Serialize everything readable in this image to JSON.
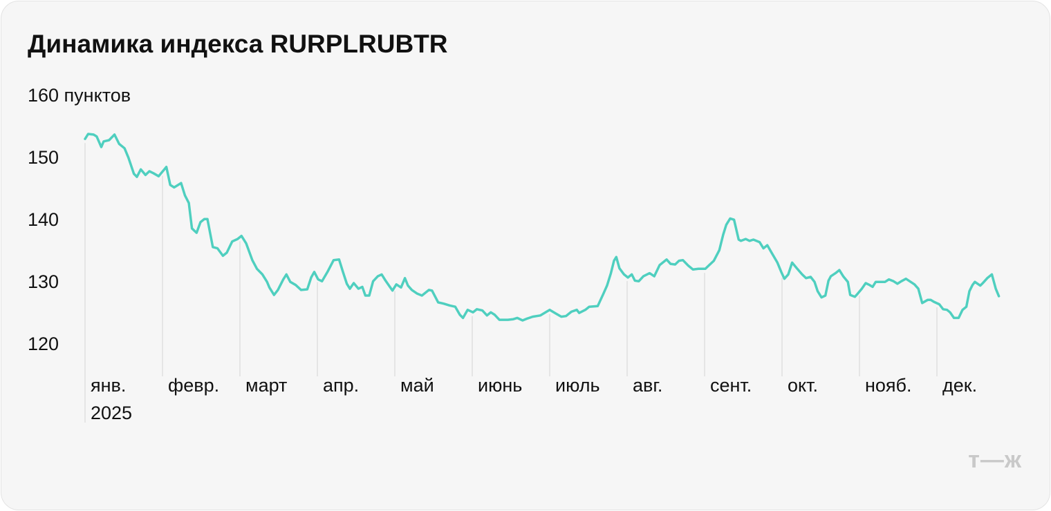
{
  "chart_data": {
    "type": "line",
    "title": "Динамика индекса RURPLRUBTR",
    "year": "2025",
    "logo": "т—ж",
    "color": "#4fcfbf",
    "xlim": [
      0,
      12
    ],
    "xticks": [
      {
        "value": 0,
        "label": "янв."
      },
      {
        "value": 1,
        "label": "февр."
      },
      {
        "value": 2,
        "label": "март"
      },
      {
        "value": 3,
        "label": "апр."
      },
      {
        "value": 4,
        "label": "май"
      },
      {
        "value": 5,
        "label": "июнь"
      },
      {
        "value": 6,
        "label": "июль"
      },
      {
        "value": 7,
        "label": "авг."
      },
      {
        "value": 8,
        "label": "сент."
      },
      {
        "value": 9,
        "label": "окт."
      },
      {
        "value": 10,
        "label": "нояб."
      },
      {
        "value": 11,
        "label": "дек."
      }
    ],
    "ylim": [
      120,
      160
    ],
    "yticks": [
      120,
      130,
      140,
      150,
      {
        "value": 160,
        "label": "160 пунктов"
      }
    ],
    "x": [
      0.0,
      0.04,
      0.11,
      0.15,
      0.21,
      0.24,
      0.31,
      0.38,
      0.44,
      0.51,
      0.56,
      0.63,
      0.67,
      0.72,
      0.78,
      0.83,
      0.88,
      0.95,
      1.05,
      1.1,
      1.15,
      1.24,
      1.29,
      1.34,
      1.38,
      1.44,
      1.49,
      1.54,
      1.58,
      1.65,
      1.71,
      1.78,
      1.83,
      1.9,
      1.97,
      2.02,
      2.08,
      2.16,
      2.22,
      2.29,
      2.35,
      2.38,
      2.44,
      2.49,
      2.56,
      2.6,
      2.65,
      2.72,
      2.79,
      2.87,
      2.92,
      2.96,
      3.01,
      3.06,
      3.13,
      3.21,
      3.28,
      3.33,
      3.38,
      3.42,
      3.47,
      3.53,
      3.58,
      3.62,
      3.67,
      3.72,
      3.78,
      3.83,
      3.88,
      3.92,
      3.97,
      4.02,
      4.08,
      4.13,
      4.17,
      4.22,
      4.29,
      4.35,
      4.44,
      4.48,
      4.56,
      4.63,
      4.71,
      4.78,
      4.84,
      4.88,
      4.94,
      5.01,
      5.06,
      5.13,
      5.19,
      5.24,
      5.29,
      5.35,
      5.46,
      5.53,
      5.58,
      5.65,
      5.71,
      5.78,
      5.88,
      5.96,
      6.0,
      6.08,
      6.15,
      6.21,
      6.28,
      6.35,
      6.38,
      6.46,
      6.51,
      6.62,
      6.69,
      6.74,
      6.79,
      6.83,
      6.86,
      6.9,
      6.96,
      7.01,
      7.06,
      7.1,
      7.15,
      7.21,
      7.29,
      7.35,
      7.42,
      7.51,
      7.56,
      7.62,
      7.67,
      7.72,
      7.79,
      7.85,
      7.92,
      8.01,
      8.06,
      8.12,
      8.19,
      8.24,
      8.28,
      8.33,
      8.38,
      8.44,
      8.47,
      8.53,
      8.58,
      8.63,
      8.71,
      8.76,
      8.81,
      8.87,
      8.94,
      8.99,
      9.03,
      9.08,
      9.13,
      9.19,
      9.26,
      9.31,
      9.37,
      9.42,
      9.46,
      9.51,
      9.56,
      9.6,
      9.63,
      9.69,
      9.74,
      9.79,
      9.85,
      9.88,
      9.94,
      9.97,
      10.03,
      10.08,
      10.13,
      10.17,
      10.21,
      10.33,
      10.38,
      10.44,
      10.49,
      10.54,
      10.6,
      10.71,
      10.76,
      10.81,
      10.88,
      10.92,
      10.96,
      11.03,
      11.08,
      11.13,
      11.17,
      11.22,
      11.28,
      11.33,
      11.38,
      11.42,
      11.46,
      11.49,
      11.56,
      11.6,
      11.65,
      11.71,
      11.76,
      11.8
    ],
    "values": [
      153.2,
      154.0,
      153.9,
      153.6,
      151.9,
      152.8,
      153.0,
      153.9,
      152.4,
      151.7,
      150.2,
      147.6,
      147.1,
      148.3,
      147.4,
      148.0,
      147.7,
      147.2,
      148.7,
      145.8,
      145.4,
      146.1,
      144.1,
      142.9,
      138.8,
      138.1,
      139.8,
      140.3,
      140.3,
      135.8,
      135.6,
      134.4,
      134.9,
      136.7,
      137.1,
      137.6,
      136.4,
      133.7,
      132.3,
      131.4,
      130.2,
      129.3,
      128.1,
      128.9,
      130.6,
      131.4,
      130.2,
      129.7,
      128.9,
      129.0,
      130.9,
      131.8,
      130.6,
      130.3,
      131.8,
      133.7,
      133.8,
      131.8,
      129.9,
      129.1,
      130.0,
      129.1,
      129.4,
      128.0,
      128.0,
      130.3,
      131.1,
      131.4,
      130.4,
      129.7,
      128.8,
      129.8,
      129.3,
      130.8,
      129.6,
      128.9,
      128.3,
      128.0,
      128.9,
      128.8,
      126.9,
      126.7,
      126.4,
      126.2,
      124.9,
      124.4,
      125.7,
      125.3,
      125.8,
      125.6,
      124.8,
      125.3,
      124.9,
      124.1,
      124.1,
      124.2,
      124.4,
      124.0,
      124.3,
      124.6,
      124.8,
      125.4,
      125.7,
      125.1,
      124.6,
      124.7,
      125.4,
      125.7,
      125.2,
      125.7,
      126.2,
      126.3,
      128.2,
      129.6,
      131.6,
      133.6,
      134.2,
      132.4,
      131.4,
      130.9,
      131.4,
      130.4,
      130.3,
      131.1,
      131.6,
      131.1,
      132.9,
      133.8,
      133.1,
      133.0,
      133.6,
      133.7,
      132.8,
      132.2,
      132.3,
      132.3,
      132.9,
      133.6,
      135.3,
      137.8,
      139.4,
      140.4,
      140.2,
      137.0,
      136.8,
      137.1,
      136.8,
      137.0,
      136.6,
      135.6,
      136.1,
      134.8,
      133.3,
      131.8,
      130.7,
      131.4,
      133.3,
      132.4,
      131.4,
      130.8,
      131.0,
      130.2,
      128.7,
      127.7,
      128.0,
      130.4,
      131.1,
      131.6,
      132.1,
      131.1,
      130.2,
      128.1,
      127.8,
      128.2,
      129.1,
      130.0,
      129.7,
      129.4,
      130.2,
      130.2,
      130.6,
      130.3,
      129.9,
      130.3,
      130.7,
      129.8,
      129.1,
      126.8,
      127.3,
      127.3,
      127.0,
      126.6,
      125.8,
      125.7,
      125.3,
      124.4,
      124.4,
      125.7,
      126.2,
      128.7,
      129.7,
      130.2,
      129.6,
      130.1,
      130.8,
      131.4,
      129.1,
      127.9
    ]
  }
}
